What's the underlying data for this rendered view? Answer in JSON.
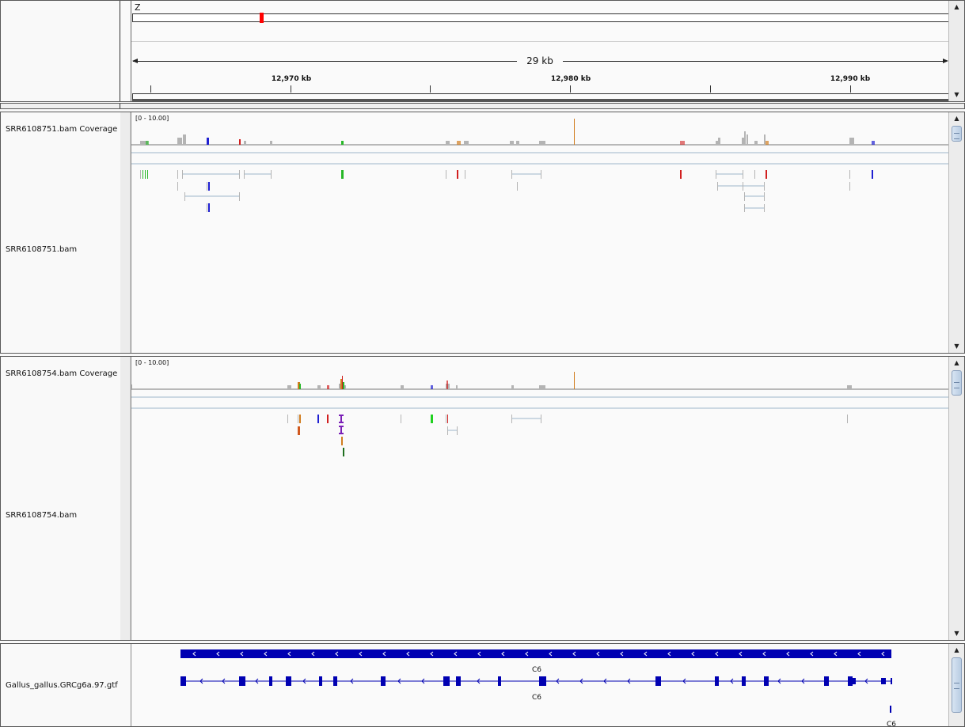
{
  "header": {
    "chromosome": "Z",
    "span_label": "29 kb",
    "ruler_labels": [
      {
        "text": "12,970 kb",
        "kb": 12970
      },
      {
        "text": "12,980 kb",
        "kb": 12980
      },
      {
        "text": "12,990 kb",
        "kb": 12990
      }
    ]
  },
  "tracks": {
    "cov1": {
      "name": "SRR6108751.bam Coverage",
      "range": "[0 - 10.00]"
    },
    "bam1": {
      "name": "SRR6108751.bam"
    },
    "cov2": {
      "name": "SRR6108754.bam Coverage",
      "range": "[0 - 10.00]"
    },
    "bam2": {
      "name": "SRR6108754.bam"
    },
    "gtf": {
      "name": "Gallus_gallus.GRCg6a.97.gtf",
      "gene_labels": [
        "C6",
        "C6",
        "C6"
      ]
    }
  },
  "colors": {
    "coverage_gray": "#b4b4b4",
    "gene_blue": "#0000b2",
    "ideogram_band": "#ff0000",
    "mismatch_red": "#d11f1f",
    "mismatch_green": "#27b727",
    "mismatch_blue": "#1f1fd1",
    "mismatch_orange": "#d17d1f"
  }
}
